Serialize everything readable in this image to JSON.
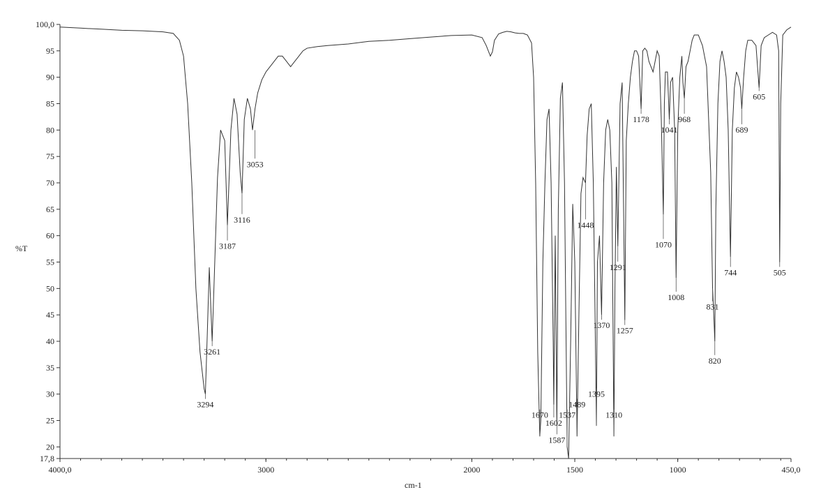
{
  "chart_data": {
    "type": "line",
    "title": "",
    "xlabel": "cm-1",
    "ylabel": "%T",
    "xlim": [
      4000.0,
      450.0
    ],
    "ylim": [
      17.8,
      100.0
    ],
    "x_reversed": true,
    "grid": false,
    "x_ticks": [
      {
        "value": 4000,
        "label": "4000,0"
      },
      {
        "value": 3000,
        "label": "3000"
      },
      {
        "value": 2000,
        "label": "2000"
      },
      {
        "value": 1500,
        "label": "1500"
      },
      {
        "value": 1000,
        "label": "1000"
      },
      {
        "value": 450,
        "label": "450,0"
      }
    ],
    "y_ticks": [
      {
        "value": 100,
        "label": "100,0"
      },
      {
        "value": 95,
        "label": "95"
      },
      {
        "value": 90,
        "label": "90"
      },
      {
        "value": 85,
        "label": "85"
      },
      {
        "value": 80,
        "label": "80"
      },
      {
        "value": 75,
        "label": "75"
      },
      {
        "value": 70,
        "label": "70"
      },
      {
        "value": 65,
        "label": "65"
      },
      {
        "value": 60,
        "label": "60"
      },
      {
        "value": 55,
        "label": "55"
      },
      {
        "value": 50,
        "label": "50"
      },
      {
        "value": 45,
        "label": "45"
      },
      {
        "value": 40,
        "label": "40"
      },
      {
        "value": 35,
        "label": "35"
      },
      {
        "value": 30,
        "label": "30"
      },
      {
        "value": 25,
        "label": "25"
      },
      {
        "value": 20,
        "label": "20"
      },
      {
        "value": 17.8,
        "label": "17,8"
      }
    ],
    "series": [
      {
        "x": [
          4000,
          3900,
          3800,
          3700,
          3600,
          3500,
          3450,
          3420,
          3400,
          3380,
          3360,
          3340,
          3320,
          3300,
          3294,
          3285,
          3275,
          3261,
          3250,
          3235,
          3220,
          3200,
          3187,
          3170,
          3155,
          3140,
          3125,
          3116,
          3105,
          3090,
          3075,
          3065,
          3053,
          3040,
          3020,
          3000,
          2980,
          2960,
          2940,
          2920,
          2900,
          2880,
          2860,
          2840,
          2820,
          2800,
          2750,
          2700,
          2600,
          2500,
          2400,
          2300,
          2200,
          2100,
          2000,
          1950,
          1930,
          1910,
          1900,
          1890,
          1870,
          1850,
          1830,
          1810,
          1790,
          1770,
          1750,
          1730,
          1710,
          1700,
          1690,
          1680,
          1670,
          1665,
          1655,
          1645,
          1635,
          1625,
          1615,
          1605,
          1602,
          1595,
          1587,
          1580,
          1570,
          1560,
          1550,
          1537,
          1530,
          1520,
          1510,
          1500,
          1489,
          1480,
          1470,
          1460,
          1448,
          1440,
          1430,
          1420,
          1410,
          1400,
          1395,
          1390,
          1380,
          1370,
          1360,
          1350,
          1340,
          1330,
          1320,
          1310,
          1305,
          1298,
          1291,
          1280,
          1270,
          1257,
          1250,
          1240,
          1230,
          1220,
          1210,
          1200,
          1190,
          1178,
          1170,
          1160,
          1150,
          1140,
          1130,
          1120,
          1110,
          1100,
          1090,
          1080,
          1070,
          1065,
          1060,
          1050,
          1041,
          1035,
          1025,
          1015,
          1008,
          1000,
          990,
          980,
          975,
          968,
          960,
          950,
          940,
          930,
          920,
          900,
          880,
          860,
          850,
          840,
          831,
          825,
          820,
          815,
          805,
          795,
          785,
          775,
          765,
          755,
          744,
          735,
          725,
          715,
          705,
          695,
          689,
          680,
          670,
          660,
          640,
          620,
          605,
          595,
          580,
          560,
          540,
          520,
          510,
          505,
          500,
          490,
          470,
          450
        ],
        "y": [
          99.5,
          99.3,
          99.1,
          98.9,
          98.8,
          98.6,
          98.3,
          97.0,
          94.0,
          85.0,
          70.0,
          50.0,
          38.0,
          31.0,
          30.0,
          41.0,
          54.0,
          40.0,
          53.0,
          71.0,
          80.0,
          78.0,
          62.0,
          80.0,
          86.0,
          83.0,
          72.0,
          68.0,
          82.0,
          86.0,
          84.0,
          80.0,
          84.0,
          87.0,
          89.5,
          91.0,
          92.0,
          93.0,
          94.0,
          94.0,
          93.0,
          92.0,
          93.0,
          94.0,
          95.0,
          95.5,
          95.8,
          96.0,
          96.3,
          96.8,
          97.0,
          97.3,
          97.6,
          97.9,
          98.0,
          97.5,
          96.0,
          94.0,
          94.8,
          97.0,
          98.2,
          98.5,
          98.7,
          98.6,
          98.4,
          98.3,
          98.3,
          98.0,
          96.5,
          90.0,
          70.0,
          38.0,
          22.0,
          25.0,
          55.0,
          70.0,
          82.0,
          84.0,
          70.0,
          40.0,
          28.0,
          60.0,
          24.0,
          65.0,
          86.0,
          89.0,
          70.0,
          20.0,
          17.8,
          40.0,
          66.0,
          55.0,
          22.0,
          45.0,
          68.0,
          71.0,
          70.0,
          79.0,
          84.0,
          85.0,
          70.0,
          40.0,
          24.0,
          55.0,
          60.0,
          45.0,
          70.0,
          80.0,
          82.0,
          80.0,
          70.0,
          22.0,
          50.0,
          73.0,
          58.0,
          85.0,
          89.0,
          44.0,
          78.0,
          85.0,
          90.0,
          93.0,
          95.0,
          95.0,
          94.0,
          84.0,
          95.0,
          95.5,
          95.0,
          93.0,
          92.0,
          91.0,
          93.0,
          95.0,
          94.0,
          82.0,
          64.0,
          85.0,
          91.0,
          91.0,
          82.0,
          89.0,
          90.0,
          80.0,
          52.0,
          80.0,
          90.0,
          94.0,
          89.0,
          86.0,
          92.0,
          93.0,
          95.0,
          97.0,
          98.0,
          98.0,
          96.0,
          92.0,
          82.0,
          72.0,
          50.0,
          45.0,
          40.0,
          65.0,
          85.0,
          93.0,
          95.0,
          93.0,
          90.0,
          80.0,
          56.0,
          80.0,
          88.0,
          91.0,
          90.0,
          88.0,
          84.0,
          90.0,
          95.0,
          97.0,
          97.0,
          96.0,
          88.0,
          96.0,
          97.5,
          98.0,
          98.5,
          98.0,
          95.0,
          55.0,
          85.0,
          98.0,
          99.0,
          99.5
        ]
      }
    ],
    "peak_labels": [
      {
        "x": 3294,
        "y": 30.0,
        "label": "3294",
        "label_y": 27.5
      },
      {
        "x": 3261,
        "y": 40.0,
        "label": "3261",
        "label_y": 37.5
      },
      {
        "x": 3187,
        "y": 62.0,
        "label": "3187",
        "label_y": 57.5
      },
      {
        "x": 3116,
        "y": 68.0,
        "label": "3116",
        "label_y": 62.5
      },
      {
        "x": 3053,
        "y": 80.0,
        "label": "3053",
        "label_y": 73.0
      },
      {
        "x": 1670,
        "y": 22.0,
        "label": "1670",
        "label_y": 25.5
      },
      {
        "x": 1602,
        "y": 28.0,
        "label": "1602",
        "label_y": 24.0
      },
      {
        "x": 1587,
        "y": 24.0,
        "label": "1587",
        "label_y": 20.8
      },
      {
        "x": 1537,
        "y": 20.0,
        "label": "1537",
        "label_y": 25.5
      },
      {
        "x": 1489,
        "y": 22.0,
        "label": "1489",
        "label_y": 27.5
      },
      {
        "x": 1448,
        "y": 70.0,
        "label": "1448",
        "label_y": 61.5
      },
      {
        "x": 1395,
        "y": 24.0,
        "label": "1395",
        "label_y": 29.5
      },
      {
        "x": 1370,
        "y": 45.0,
        "label": "1370",
        "label_y": 42.5
      },
      {
        "x": 1310,
        "y": 22.0,
        "label": "1310",
        "label_y": 25.5
      },
      {
        "x": 1291,
        "y": 58.0,
        "label": "1291",
        "label_y": 53.5
      },
      {
        "x": 1257,
        "y": 44.0,
        "label": "1257",
        "label_y": 41.5
      },
      {
        "x": 1178,
        "y": 84.0,
        "label": "1178",
        "label_y": 81.5
      },
      {
        "x": 1070,
        "y": 64.0,
        "label": "1070",
        "label_y": 57.8
      },
      {
        "x": 1041,
        "y": 82.0,
        "label": "1041",
        "label_y": 79.5
      },
      {
        "x": 1008,
        "y": 52.0,
        "label": "1008",
        "label_y": 47.8
      },
      {
        "x": 968,
        "y": 86.0,
        "label": "968",
        "label_y": 81.5
      },
      {
        "x": 831,
        "y": 50.0,
        "label": "831",
        "label_y": 46.0
      },
      {
        "x": 820,
        "y": 40.0,
        "label": "820",
        "label_y": 35.8
      },
      {
        "x": 744,
        "y": 56.0,
        "label": "744",
        "label_y": 52.5
      },
      {
        "x": 689,
        "y": 84.0,
        "label": "689",
        "label_y": 79.5
      },
      {
        "x": 605,
        "y": 88.0,
        "label": "605",
        "label_y": 85.8
      },
      {
        "x": 505,
        "y": 55.0,
        "label": "505",
        "label_y": 52.5
      }
    ]
  }
}
